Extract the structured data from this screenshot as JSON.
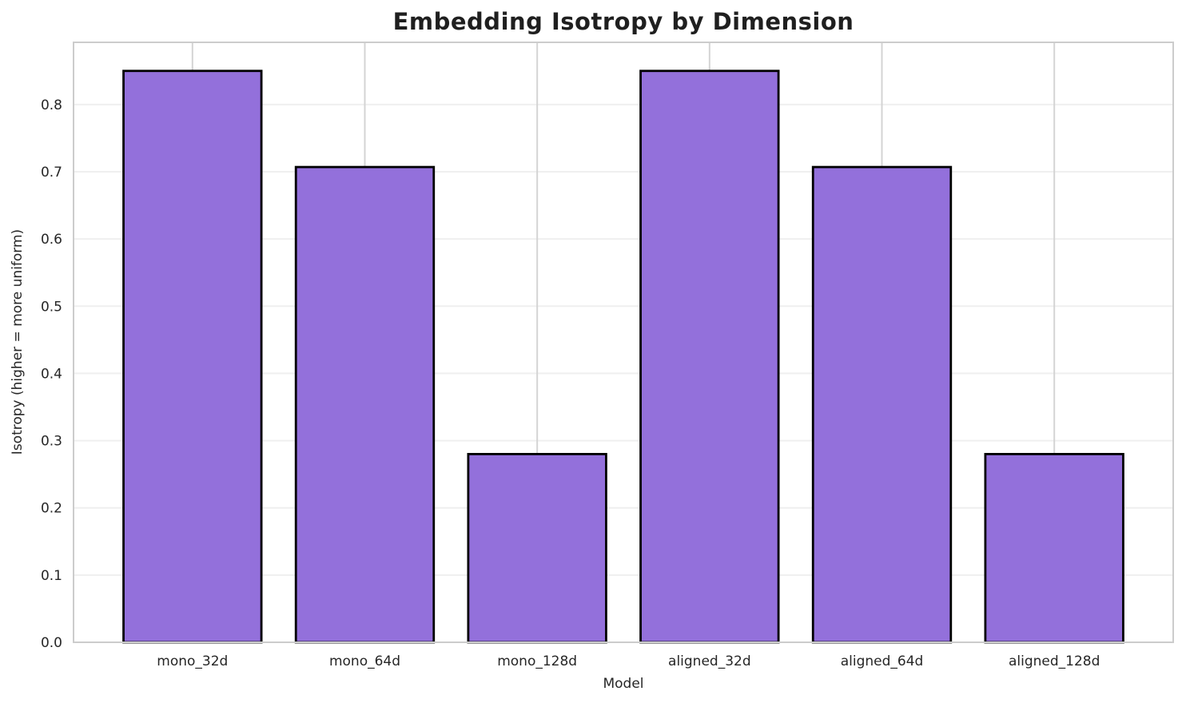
{
  "chart_data": {
    "type": "bar",
    "title": "Embedding Isotropy by Dimension",
    "xlabel": "Model",
    "ylabel": "Isotropy (higher = more uniform)",
    "categories": [
      "mono_32d",
      "mono_64d",
      "mono_128d",
      "aligned_32d",
      "aligned_64d",
      "aligned_128d"
    ],
    "values": [
      0.85,
      0.707,
      0.28,
      0.85,
      0.707,
      0.28
    ],
    "yticks": [
      0.0,
      0.1,
      0.2,
      0.3,
      0.4,
      0.5,
      0.6,
      0.7,
      0.8
    ],
    "ytick_labels": [
      "0.0",
      "0.1",
      "0.2",
      "0.3",
      "0.4",
      "0.5",
      "0.6",
      "0.7",
      "0.8"
    ],
    "ylim": [
      0,
      0.8925
    ],
    "grid": true,
    "legend_position": "none",
    "colors": {
      "bar_fill": "#9370DB",
      "bar_edge": "#000000",
      "grid_horizontal": "#efefef",
      "grid_vertical": "#d4d4d4",
      "spine": "#cccccc",
      "text": "#262626",
      "title_text": "#1f1f1f",
      "background": "#ffffff"
    }
  }
}
